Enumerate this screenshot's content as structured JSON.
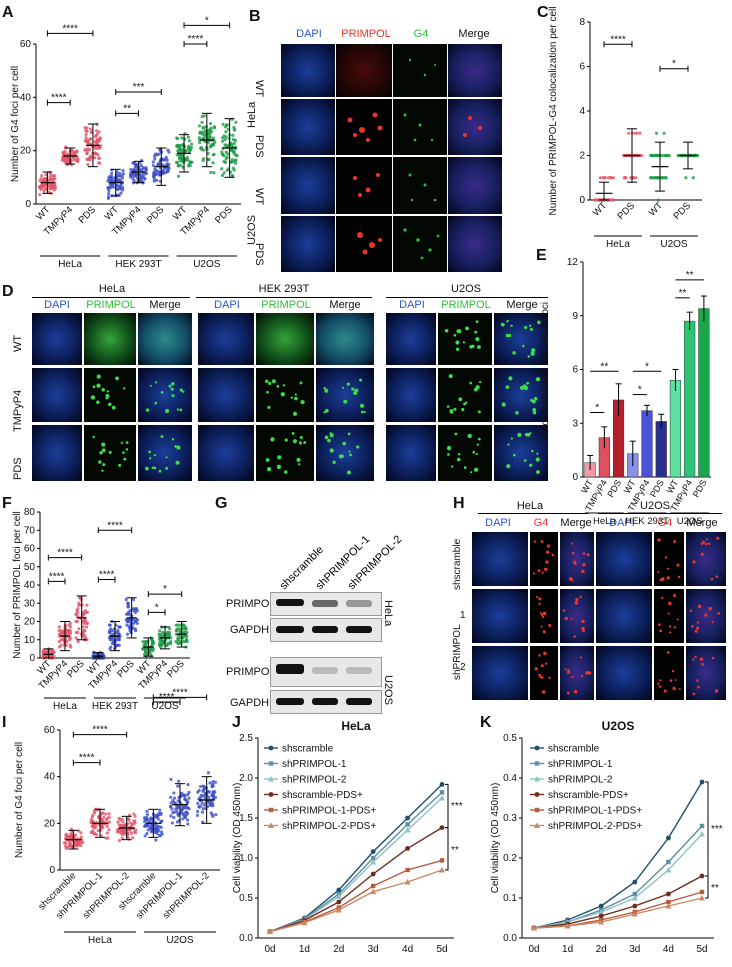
{
  "figure": {
    "panels": {
      "A": "A",
      "B": "B",
      "C": "C",
      "D": "D",
      "E": "E",
      "F": "F",
      "G": "G",
      "H": "H",
      "I": "I",
      "J": "J",
      "K": "K"
    }
  },
  "panel_b": {
    "columns": [
      "DAPI",
      "PRIMPOL",
      "G4",
      "Merge"
    ],
    "row_groups": [
      "HeLa",
      "U2OS"
    ],
    "rows": [
      "WT",
      "PDS",
      "WT",
      "PDS"
    ]
  },
  "panel_d": {
    "groups": [
      "HeLa",
      "HEK 293T",
      "U2OS"
    ],
    "columns": [
      "DAPI",
      "PRIMPOL",
      "Merge"
    ],
    "rows": [
      "WT",
      "TMPyP4",
      "PDS"
    ]
  },
  "panel_g": {
    "lanes": [
      "shscramble",
      "shPRIMPOL-1",
      "shPRIMPOL-2"
    ],
    "blots": [
      "PRIMPOL",
      "GAPDH",
      "PRIMPOL",
      "GAPDH"
    ],
    "cells": [
      "HeLa",
      "U2OS"
    ]
  },
  "panel_h": {
    "groups": [
      "HeLa",
      "U2OS"
    ],
    "columns": [
      "DAPI",
      "G4",
      "Merge",
      "DAPI",
      "G4",
      "Merge"
    ],
    "row_title": "shPRIMPOL shscramble",
    "rows": [
      "shscramble",
      "1",
      "2"
    ],
    "side_label": "shPRIMPOL"
  },
  "colors": {
    "dapi": "#2a55d6",
    "primpol_red": "#e8352b",
    "g4_green": "#2fbe3b",
    "hela_series": "#e2556a",
    "hek_series": "#3d4fc9",
    "u2os_series": "#1e9c47",
    "shscramble": "#1f4e6e",
    "shPRIMPOL-1": "#5a8fa6",
    "shPRIMPOL-2": "#8fc0c5",
    "shscramble-PDS+": "#6b2d20",
    "shPRIMPOL-1-PDS+": "#b85a3c",
    "shPRIMPOL-2-PDS+": "#c98864"
  },
  "chart_data": [
    {
      "id": "A",
      "type": "scatter",
      "ylabel": "Number of G4 foci per cell",
      "ylim": [
        0,
        60
      ],
      "yticks": [
        0,
        20,
        40,
        60
      ],
      "categories": [
        "WT",
        "TMPyP4",
        "PDS",
        "WT",
        "TMPyP4",
        "PDS",
        "WT",
        "TMPyP4",
        "PDS"
      ],
      "groups": [
        "HeLa",
        "HEK 293T",
        "U2OS"
      ],
      "means": [
        8,
        18,
        22,
        8,
        12,
        14,
        19,
        24,
        21
      ],
      "sd": [
        4,
        3,
        8,
        5,
        4,
        7,
        7,
        10,
        11
      ],
      "significance": [
        "****",
        "****",
        "**",
        "***",
        "****",
        "*"
      ]
    },
    {
      "id": "C",
      "type": "scatter",
      "ylabel": "Number of PRIMPOL-G4 colocalization per cell",
      "ylim": [
        0,
        8
      ],
      "yticks": [
        0,
        2,
        4,
        6,
        8
      ],
      "categories": [
        "WT",
        "PDS",
        "WT",
        "PDS"
      ],
      "groups": [
        "HeLa",
        "U2OS"
      ],
      "means": [
        0.3,
        2.0,
        1.5,
        2.0
      ],
      "sd": [
        0.5,
        1.2,
        1.1,
        0.6
      ],
      "significance": [
        "****",
        "*"
      ]
    },
    {
      "id": "E",
      "type": "bar",
      "ylabel": "% of nuclei with PRIMPOL foci",
      "ylim": [
        0,
        12
      ],
      "yticks": [
        0,
        3,
        6,
        9,
        12
      ],
      "categories": [
        "WT",
        "TMPyP4",
        "PDS",
        "WT",
        "TMPyP4",
        "PDS",
        "WT",
        "TMPyP4",
        "PDS"
      ],
      "groups": [
        "HeLa",
        "HEK 293T",
        "U2OS"
      ],
      "values": [
        0.8,
        2.2,
        4.3,
        1.3,
        3.7,
        3.1,
        5.4,
        8.7,
        9.4
      ],
      "errors": [
        0.4,
        0.6,
        0.9,
        0.7,
        0.3,
        0.4,
        0.6,
        0.5,
        0.7
      ],
      "significance": [
        "*",
        "**",
        "*",
        "*",
        "**",
        "**"
      ]
    },
    {
      "id": "F",
      "type": "scatter",
      "ylabel": "Number of PRIMPOL foci per cell",
      "ylim": [
        0,
        80
      ],
      "yticks": [
        0,
        10,
        20,
        30,
        40,
        50,
        60,
        70,
        80
      ],
      "categories": [
        "WT",
        "TMPyP4",
        "PDS",
        "WT",
        "TMPyP4",
        "PDS",
        "WT",
        "TMPyP4",
        "PDS"
      ],
      "groups": [
        "HeLa",
        "HEK 293T",
        "U2OS"
      ],
      "means": [
        2,
        12,
        22,
        1,
        12,
        22,
        6,
        11,
        13
      ],
      "sd": [
        3,
        8,
        12,
        2,
        8,
        11,
        5,
        6,
        7
      ],
      "significance": [
        "****",
        "****",
        "****",
        "****",
        "*",
        "*"
      ]
    },
    {
      "id": "I",
      "type": "scatter",
      "ylabel": "Number of G4 foci per cell",
      "ylim": [
        0,
        60
      ],
      "yticks": [
        0,
        20,
        40,
        60
      ],
      "categories": [
        "shscramble",
        "shPRIMPOL-1",
        "shPRIMPOL-2",
        "shscramble",
        "shPRIMPOL-1",
        "shPRIMPOL-2"
      ],
      "groups": [
        "HeLa",
        "U2OS"
      ],
      "means": [
        13,
        20,
        18,
        20,
        28,
        30
      ],
      "sd": [
        4,
        6,
        5,
        6,
        9,
        10
      ],
      "significance": [
        "****",
        "****",
        "****",
        "****"
      ]
    },
    {
      "id": "J",
      "type": "line",
      "title": "HeLa",
      "ylabel": "Cell viability (OD 450nm)",
      "ylim": [
        0,
        2.5
      ],
      "yticks": [
        0.0,
        0.5,
        1.0,
        1.5,
        2.0,
        2.5
      ],
      "x": [
        "0d",
        "1d",
        "2d",
        "3d",
        "4d",
        "5d"
      ],
      "series": [
        {
          "name": "shscramble",
          "values": [
            0.08,
            0.25,
            0.6,
            1.08,
            1.5,
            1.92
          ]
        },
        {
          "name": "shPRIMPOL-1",
          "values": [
            0.08,
            0.24,
            0.55,
            1.0,
            1.42,
            1.82
          ]
        },
        {
          "name": "shPRIMPOL-2",
          "values": [
            0.08,
            0.23,
            0.52,
            0.95,
            1.35,
            1.75
          ]
        },
        {
          "name": "shscramble-PDS+",
          "values": [
            0.08,
            0.22,
            0.45,
            0.8,
            1.12,
            1.38
          ]
        },
        {
          "name": "shPRIMPOL-1-PDS+",
          "values": [
            0.08,
            0.2,
            0.38,
            0.65,
            0.85,
            0.97
          ]
        },
        {
          "name": "shPRIMPOL-2-PDS+",
          "values": [
            0.08,
            0.19,
            0.35,
            0.58,
            0.7,
            0.85
          ]
        }
      ],
      "significance": [
        "***",
        "**"
      ]
    },
    {
      "id": "K",
      "type": "line",
      "title": "U2OS",
      "ylabel": "Cell viability (OD 450nm)",
      "ylim": [
        0,
        0.5
      ],
      "yticks": [
        0.0,
        0.1,
        0.2,
        0.3,
        0.4,
        0.5
      ],
      "x": [
        "0d",
        "1d",
        "2d",
        "3d",
        "4d",
        "5d"
      ],
      "series": [
        {
          "name": "shscramble",
          "values": [
            0.025,
            0.045,
            0.08,
            0.14,
            0.25,
            0.39
          ]
        },
        {
          "name": "shPRIMPOL-1",
          "values": [
            0.025,
            0.04,
            0.07,
            0.11,
            0.19,
            0.28
          ]
        },
        {
          "name": "shPRIMPOL-2",
          "values": [
            0.025,
            0.04,
            0.065,
            0.1,
            0.17,
            0.26
          ]
        },
        {
          "name": "shscramble-PDS+",
          "values": [
            0.025,
            0.035,
            0.055,
            0.08,
            0.11,
            0.155
          ]
        },
        {
          "name": "shPRIMPOL-1-PDS+",
          "values": [
            0.025,
            0.03,
            0.045,
            0.065,
            0.09,
            0.115
          ]
        },
        {
          "name": "shPRIMPOL-2-PDS+",
          "values": [
            0.025,
            0.03,
            0.04,
            0.06,
            0.08,
            0.1
          ]
        }
      ],
      "significance": [
        "***",
        "**"
      ]
    }
  ]
}
